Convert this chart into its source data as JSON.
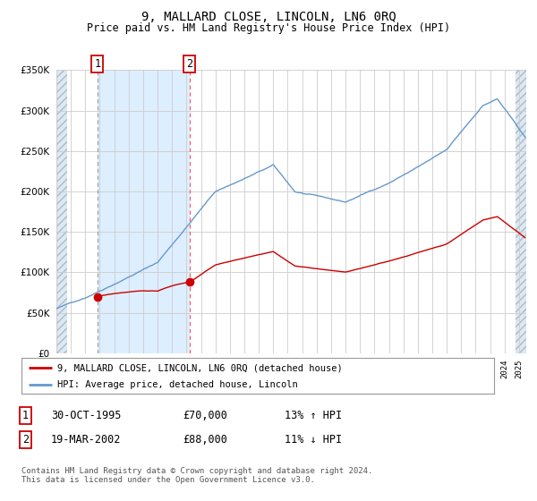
{
  "title": "9, MALLARD CLOSE, LINCOLN, LN6 0RQ",
  "subtitle": "Price paid vs. HM Land Registry's House Price Index (HPI)",
  "legend_entries": [
    "9, MALLARD CLOSE, LINCOLN, LN6 0RQ (detached house)",
    "HPI: Average price, detached house, Lincoln"
  ],
  "transactions": [
    {
      "label": "1",
      "date_str": "30-OCT-1995",
      "date_num": 1995.83,
      "price": 70000,
      "hpi_pct": "13% ↑ HPI",
      "line_style": "dashed_gray"
    },
    {
      "label": "2",
      "date_str": "19-MAR-2002",
      "date_num": 2002.21,
      "price": 88000,
      "hpi_pct": "11% ↓ HPI",
      "line_style": "dashed_red"
    }
  ],
  "table_rows": [
    [
      "1",
      "30-OCT-1995",
      "£70,000",
      "13% ↑ HPI"
    ],
    [
      "2",
      "19-MAR-2002",
      "£88,000",
      "11% ↓ HPI"
    ]
  ],
  "footer": "Contains HM Land Registry data © Crown copyright and database right 2024.\nThis data is licensed under the Open Government Licence v3.0.",
  "ylim": [
    0,
    350000
  ],
  "yticks": [
    0,
    50000,
    100000,
    150000,
    200000,
    250000,
    300000,
    350000
  ],
  "ytick_labels": [
    "£0",
    "£50K",
    "£100K",
    "£150K",
    "£200K",
    "£250K",
    "£300K",
    "£350K"
  ],
  "xlim_start": 1993.0,
  "xlim_end": 2025.5,
  "red_line_color": "#cc0000",
  "blue_line_color": "#6699cc",
  "hatch_fill_color": "#dde8f0",
  "blue_highlight_color": "#ddeeff",
  "bg_color": "#ffffff",
  "grid_color": "#cccccc",
  "transaction_box_color": "#cc0000",
  "hpi_seed": 42,
  "hpi_noise_scale": 1200,
  "red_noise_scale": 800
}
